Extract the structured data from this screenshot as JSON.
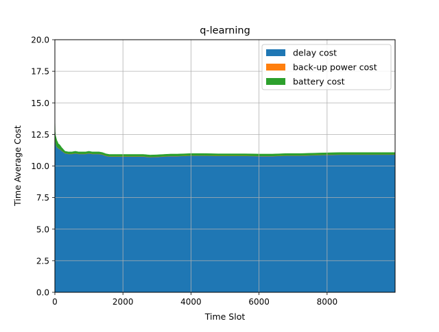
{
  "chart_data": {
    "type": "area",
    "stacked": true,
    "title": "q-learning",
    "xlabel": "Time Slot",
    "ylabel": "Time Average Cost",
    "xlim": [
      0,
      9999
    ],
    "ylim": [
      0,
      20
    ],
    "xticks": [
      0,
      2000,
      4000,
      6000,
      8000
    ],
    "xtick_labels": [
      "0",
      "2000",
      "4000",
      "6000",
      "8000"
    ],
    "yticks": [
      0,
      2.5,
      5,
      7.5,
      10,
      12.5,
      15,
      17.5,
      20
    ],
    "ytick_labels": [
      "0.0",
      "2.5",
      "5.0",
      "7.5",
      "10.0",
      "12.5",
      "15.0",
      "17.5",
      "20.0"
    ],
    "grid": true,
    "legend_position": "top-right",
    "x": [
      0,
      5,
      10,
      20,
      40,
      60,
      80,
      100,
      130,
      160,
      200,
      250,
      300,
      400,
      500,
      600,
      700,
      800,
      900,
      1000,
      1100,
      1200,
      1300,
      1400,
      1500,
      1600,
      1800,
      2000,
      2200,
      2400,
      2600,
      2800,
      3000,
      3200,
      3400,
      3600,
      3800,
      4000,
      4400,
      4800,
      5200,
      5600,
      6000,
      6400,
      6800,
      7200,
      7600,
      8000,
      8400,
      8800,
      9200,
      9600,
      9999
    ],
    "series": [
      {
        "name": "delay cost",
        "color": "#1f77b4",
        "values": [
          13.4,
          12.7,
          12.2,
          11.9,
          11.6,
          11.5,
          11.45,
          11.4,
          11.35,
          11.3,
          11.2,
          11.1,
          11.0,
          10.95,
          10.95,
          11.0,
          10.95,
          10.95,
          10.95,
          11.0,
          10.95,
          10.95,
          10.95,
          10.9,
          10.8,
          10.75,
          10.75,
          10.75,
          10.75,
          10.75,
          10.75,
          10.7,
          10.72,
          10.75,
          10.78,
          10.78,
          10.8,
          10.82,
          10.82,
          10.8,
          10.8,
          10.8,
          10.78,
          10.78,
          10.82,
          10.82,
          10.85,
          10.88,
          10.9,
          10.9,
          10.9,
          10.9,
          10.9
        ]
      },
      {
        "name": "back-up power cost",
        "color": "#ff7f0e",
        "values": [
          0.02,
          0.02,
          0.02,
          0.02,
          0.02,
          0.02,
          0.02,
          0.02,
          0.02,
          0.02,
          0.02,
          0.02,
          0.02,
          0.02,
          0.02,
          0.02,
          0.02,
          0.02,
          0.02,
          0.02,
          0.02,
          0.02,
          0.02,
          0.02,
          0.02,
          0.02,
          0.02,
          0.02,
          0.02,
          0.02,
          0.02,
          0.02,
          0.02,
          0.02,
          0.02,
          0.02,
          0.02,
          0.02,
          0.02,
          0.02,
          0.02,
          0.02,
          0.02,
          0.02,
          0.02,
          0.02,
          0.02,
          0.02,
          0.02,
          0.02,
          0.02,
          0.02,
          0.02
        ]
      },
      {
        "name": "battery cost",
        "color": "#2ca02c",
        "values": [
          0.6,
          0.7,
          0.5,
          0.5,
          0.6,
          0.5,
          0.45,
          0.35,
          0.35,
          0.3,
          0.25,
          0.2,
          0.15,
          0.15,
          0.15,
          0.15,
          0.15,
          0.15,
          0.15,
          0.15,
          0.15,
          0.15,
          0.15,
          0.15,
          0.15,
          0.15,
          0.15,
          0.15,
          0.15,
          0.15,
          0.15,
          0.15,
          0.15,
          0.15,
          0.15,
          0.15,
          0.15,
          0.15,
          0.15,
          0.15,
          0.15,
          0.15,
          0.15,
          0.15,
          0.15,
          0.15,
          0.15,
          0.15,
          0.15,
          0.15,
          0.15,
          0.15,
          0.15
        ]
      }
    ]
  }
}
